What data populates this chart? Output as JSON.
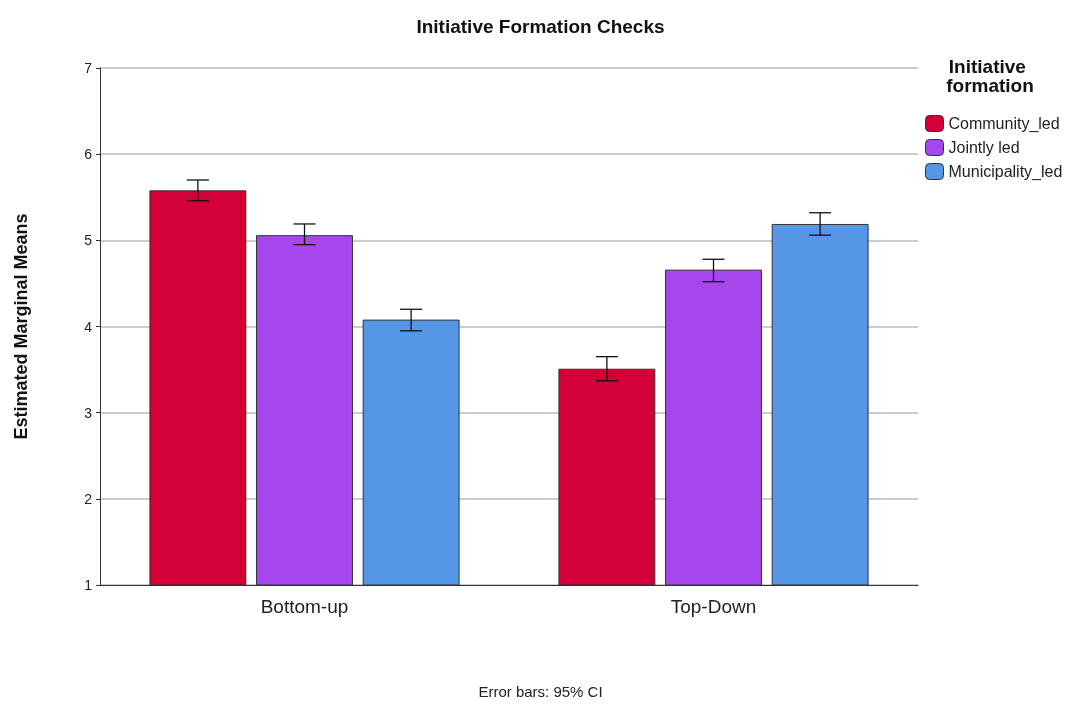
{
  "chart_data": {
    "type": "bar",
    "title": "Initiative Formation Checks",
    "ylabel": "Estimated Marginal Means",
    "legend_title": "Initiative formation",
    "categories": [
      "Bottom-up",
      "Top-Down"
    ],
    "series": [
      {
        "name": "Community_led",
        "color": "#d20036",
        "values": [
          5.58,
          3.51
        ],
        "errors": [
          [
            5.46,
            5.7
          ],
          [
            3.37,
            3.65
          ]
        ]
      },
      {
        "name": "Jointly led",
        "color": "#a546ee",
        "values": [
          5.06,
          4.66
        ],
        "errors": [
          [
            4.95,
            5.19
          ],
          [
            4.52,
            4.78
          ]
        ]
      },
      {
        "name": "Municipality_led",
        "color": "#5596e6",
        "values": [
          4.08,
          5.19
        ],
        "errors": [
          [
            3.95,
            4.2
          ],
          [
            5.06,
            5.32
          ]
        ]
      }
    ],
    "ylim": [
      1,
      7
    ],
    "yticks": [
      1,
      2,
      3,
      4,
      5,
      6,
      7
    ],
    "grid": "y",
    "legend": "top right",
    "annotations": [
      "Error bars: 95% CI"
    ]
  }
}
